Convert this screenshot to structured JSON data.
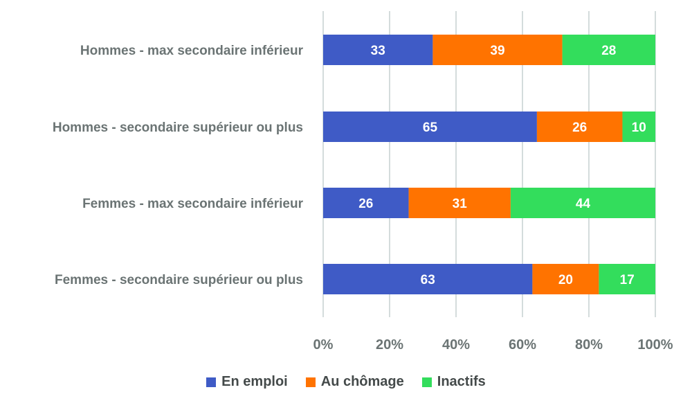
{
  "chart_data": {
    "type": "bar",
    "orientation": "horizontal",
    "stacked": "percent",
    "categories": [
      "Hommes - max secondaire inférieur",
      "Hommes - secondaire supérieur ou plus",
      "Femmes - max secondaire inférieur",
      "Femmes - secondaire supérieur ou plus"
    ],
    "series": [
      {
        "name": "En emploi",
        "color": "#3f5bc6",
        "values": [
          33,
          65,
          26,
          63
        ]
      },
      {
        "name": "Au chômage",
        "color": "#ff7300",
        "values": [
          39,
          26,
          31,
          20
        ]
      },
      {
        "name": "Inactifs",
        "color": "#33dd5c",
        "values": [
          28,
          10,
          44,
          17
        ]
      }
    ],
    "x_ticks": [
      "0%",
      "20%",
      "40%",
      "60%",
      "80%",
      "100%"
    ],
    "xlim": [
      0,
      100
    ],
    "grid": "vertical",
    "legend_position": "bottom",
    "title": "",
    "xlabel": "",
    "ylabel": ""
  }
}
